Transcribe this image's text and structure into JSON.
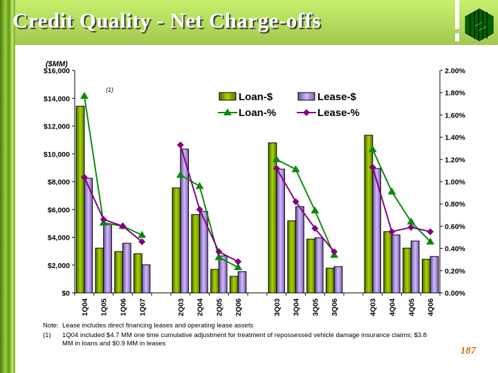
{
  "title": "Credit Quality - Net Charge-offs",
  "colors": {
    "loan_bar": "#8ab800",
    "lease_bar": "#b48ef0",
    "loan_line": "#0a8a0a",
    "lease_line": "#800080",
    "header": "#b4dc5c",
    "page_number": "#c07010"
  },
  "chart_data": {
    "type": "bar",
    "ylabel": "($MM)",
    "annotation": "(1)",
    "categories": [
      "1Q04",
      "1Q05",
      "1Q06",
      "1Q07",
      "",
      "2Q03",
      "2Q04",
      "2Q05",
      "2Q06",
      "",
      "3Q03",
      "3Q04",
      "3Q05",
      "3Q06",
      "",
      "4Q03",
      "4Q04",
      "4Q05",
      "4Q06"
    ],
    "ylim": [
      0,
      16000
    ],
    "y2lim": [
      0,
      2.0
    ],
    "yticks": [
      "$0",
      "$2,000",
      "$4,000",
      "$6,000",
      "$8,000",
      "$10,000",
      "$12,000",
      "$14,000",
      "$16,000"
    ],
    "y2ticks": [
      "0.00%",
      "0.20%",
      "0.40%",
      "0.60%",
      "0.80%",
      "1.00%",
      "1.20%",
      "1.40%",
      "1.60%",
      "1.80%",
      "2.00%"
    ],
    "legend_placement": "top-right",
    "series": [
      {
        "name": "Loan-$",
        "kind": "bar",
        "axis": "left",
        "values": [
          13430,
          3220,
          2970,
          2820,
          null,
          7550,
          5630,
          1690,
          1190,
          null,
          10790,
          5180,
          3870,
          1780,
          null,
          11340,
          4410,
          3220,
          2420
        ]
      },
      {
        "name": "Lease-$",
        "kind": "bar",
        "axis": "left",
        "values": [
          8250,
          4930,
          3570,
          2020,
          null,
          10340,
          5860,
          2660,
          1530,
          null,
          8900,
          6210,
          3970,
          1890,
          null,
          8950,
          4170,
          3730,
          2620
        ]
      },
      {
        "name": "Loan-%",
        "kind": "line",
        "axis": "right",
        "marker": "triangle",
        "values": [
          1.77,
          0.63,
          0.6,
          0.52,
          null,
          1.06,
          0.96,
          0.32,
          0.23,
          null,
          1.2,
          1.11,
          0.74,
          0.34,
          null,
          1.29,
          0.91,
          0.64,
          0.46
        ]
      },
      {
        "name": "Lease-%",
        "kind": "line",
        "axis": "right",
        "marker": "diamond",
        "values": [
          1.04,
          0.66,
          0.6,
          0.46,
          null,
          1.33,
          0.75,
          0.37,
          0.28,
          null,
          1.12,
          0.82,
          0.58,
          0.37,
          null,
          1.13,
          0.55,
          0.59,
          0.55
        ]
      }
    ],
    "grid": false
  },
  "notes": {
    "note_label": "Note:",
    "note_text": "Lease includes direct financing leases and operating lease assets",
    "fn_label": "(1)",
    "fn_line1": "1Q04 included $4.7 MM one time cumulative adjustment for treatment of repossessed vehicle damage insurance claims; $3.8",
    "fn_line2": "MM in loans and $0.9 MM in leases"
  },
  "page_number": "187"
}
